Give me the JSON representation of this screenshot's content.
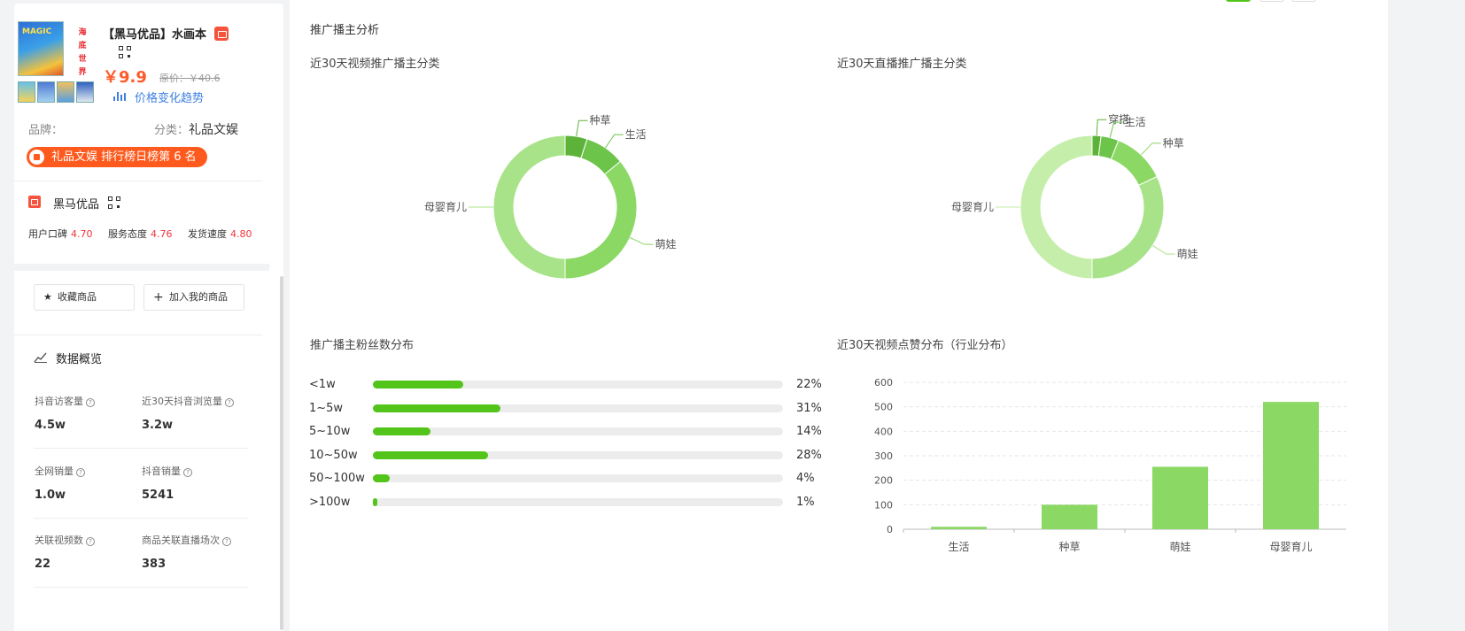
{
  "product": {
    "cover_top_text": "MAGIC",
    "cover_side_text": [
      "海",
      "底",
      "世",
      "界"
    ],
    "title": "【黑马优品】水画本",
    "price": "￥9.9",
    "original_price": "原价：￥40.6",
    "price_trend_label": "价格变化趋势",
    "brand_label": "品牌：",
    "category_label": "分类：",
    "category_value": "礼品文娱",
    "rank_text": "礼品文娱 排行榜日榜第 6 名"
  },
  "shop": {
    "name": "黑马优品",
    "scores": [
      {
        "label": "用户口碑",
        "value": "4.70"
      },
      {
        "label": "服务态度",
        "value": "4.76"
      },
      {
        "label": "发货速度",
        "value": "4.80"
      }
    ]
  },
  "actions": {
    "favorite_label": "收藏商品",
    "add_label": "加入我的商品"
  },
  "overview": {
    "title": "数据概览",
    "metrics": [
      {
        "label": "抖音访客量",
        "value": "4.5w"
      },
      {
        "label": "近30天抖音浏览量",
        "value": "3.2w"
      },
      {
        "label": "全网销量",
        "value": "1.0w"
      },
      {
        "label": "抖音销量",
        "value": "5241"
      },
      {
        "label": "关联视频数",
        "value": "22"
      },
      {
        "label": "商品关联直播场次",
        "value": "383"
      }
    ]
  },
  "analysis": {
    "section_title": "推广播主分析",
    "fans_title": "推广播主粉丝数分布",
    "likes_title": "近30天视频点赞分布（行业分布）"
  },
  "colors": {
    "accent": "#52c41a",
    "bar_green": "#8bd865",
    "price": "#ff5a2a",
    "rank_bg": "#ff5a1e",
    "link": "#3d7fe0"
  },
  "chart_data": [
    {
      "type": "pie",
      "title": "近30天视频推广播主分类",
      "categories": [
        "种草",
        "生活",
        "萌娃",
        "母婴育儿"
      ],
      "values": [
        5,
        9,
        36,
        50
      ],
      "colors": [
        "#5db33a",
        "#6cc44a",
        "#8bd865",
        "#a8e38a"
      ]
    },
    {
      "type": "pie",
      "title": "近30天直播推广播主分类",
      "categories": [
        "穿搭",
        "生活",
        "种草",
        "萌娃",
        "母婴育儿"
      ],
      "values": [
        2,
        4,
        12,
        32,
        50
      ],
      "colors": [
        "#5db33a",
        "#6cc44a",
        "#8bd865",
        "#a8e38a",
        "#c4eeaa"
      ]
    },
    {
      "type": "bar",
      "title": "推广播主粉丝数分布",
      "categories": [
        "<1w",
        "1~5w",
        "5~10w",
        "10~50w",
        "50~100w",
        ">100w"
      ],
      "values": [
        22,
        31,
        14,
        28,
        4,
        1
      ],
      "labels": [
        "22%",
        "31%",
        "14%",
        "28%",
        "4%",
        "1%"
      ]
    },
    {
      "type": "bar",
      "title": "近30天视频点赞分布（行业分布）",
      "categories": [
        "生活",
        "种草",
        "萌娃",
        "母婴育儿"
      ],
      "values": [
        10,
        100,
        255,
        520
      ],
      "yticks": [
        0,
        100,
        200,
        300,
        400,
        500,
        600
      ],
      "ylim": [
        0,
        600
      ],
      "grid": true
    }
  ]
}
